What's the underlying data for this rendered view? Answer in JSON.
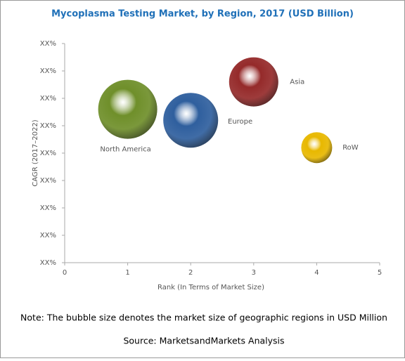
{
  "chart_data": {
    "type": "bubble",
    "title": "Mycoplasma Testing Market, by Region, 2017 (USD Billion)",
    "xlabel": "Rank (In Terms of Market Size)",
    "ylabel": "CAGR (2017–2022)",
    "xlim": [
      0,
      5
    ],
    "xticks": [
      0,
      1,
      2,
      3,
      4,
      5
    ],
    "ylim": [
      0,
      8
    ],
    "yticks": [
      {
        "value": 0,
        "label": "XX%"
      },
      {
        "value": 1,
        "label": "XX%"
      },
      {
        "value": 2,
        "label": "XX%"
      },
      {
        "value": 3,
        "label": "XX%"
      },
      {
        "value": 4,
        "label": "XX%"
      },
      {
        "value": 5,
        "label": "XX%"
      },
      {
        "value": 6,
        "label": "XX%"
      },
      {
        "value": 7,
        "label": "XX%"
      },
      {
        "value": 8,
        "label": "XX%"
      }
    ],
    "series": [
      {
        "name": "North America",
        "color": "#6f8f2a",
        "x": 1,
        "y": 5.6,
        "size": 42
      },
      {
        "name": "Europe",
        "color": "#2f5f9e",
        "x": 2,
        "y": 5.2,
        "size": 39
      },
      {
        "name": "Asia",
        "color": "#952a2a",
        "x": 3,
        "y": 6.6,
        "size": 35
      },
      {
        "name": "RoW",
        "color": "#e8b800",
        "x": 4,
        "y": 4.2,
        "size": 22
      }
    ],
    "notes": [
      "Note: The bubble size denotes the market size of geographic regions in USD Million",
      "Source: MarketsandMarkets Analysis"
    ]
  }
}
